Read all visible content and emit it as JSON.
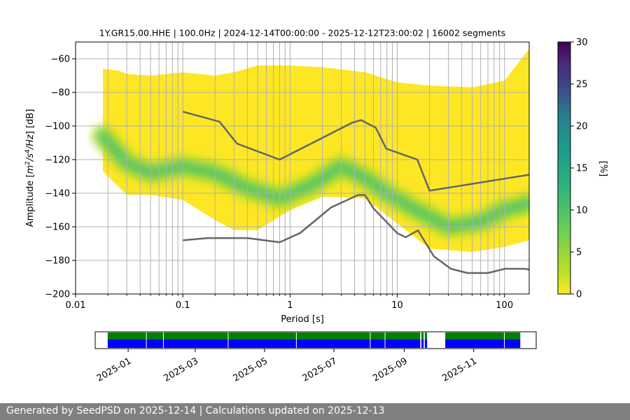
{
  "chart_data": [
    {
      "type": "heatmap",
      "title": "1Y.GR15.00.HHE | 100.0Hz | 2024-12-14T00:00:00 - 2025-12-12T23:00:02 | 16002 segments",
      "xlabel": "Period [s]",
      "ylabel": "Amplitude [m²/s⁴/Hz] [dB]",
      "ylabel_parts": {
        "pre": "Amplitude [",
        "m": "m",
        "exp1": "2",
        "s": "/s",
        "exp2": "4",
        "hz": "/Hz] [dB]"
      },
      "xscale": "log",
      "xlim": [
        0.01,
        170
      ],
      "ylim": [
        -200,
        -50
      ],
      "x_ticks": [
        {
          "v": 0.01,
          "label": "0.01"
        },
        {
          "v": 0.1,
          "label": "0.1"
        },
        {
          "v": 1,
          "label": "1"
        },
        {
          "v": 10,
          "label": "10"
        },
        {
          "v": 100,
          "label": "100"
        }
      ],
      "y_ticks": [
        {
          "v": -60,
          "label": "−60"
        },
        {
          "v": -80,
          "label": "−80"
        },
        {
          "v": -100,
          "label": "−100"
        },
        {
          "v": -120,
          "label": "−120"
        },
        {
          "v": -140,
          "label": "−140"
        },
        {
          "v": -160,
          "label": "−160"
        },
        {
          "v": -180,
          "label": "−180"
        },
        {
          "v": -200,
          "label": "−200"
        }
      ],
      "grid": true,
      "colormap": "viridis_r",
      "colorbar": {
        "label": "[%]",
        "range": [
          0,
          30
        ],
        "ticks": [
          {
            "v": 0,
            "label": "0"
          },
          {
            "v": 5,
            "label": "5"
          },
          {
            "v": 10,
            "label": "10"
          },
          {
            "v": 15,
            "label": "15"
          },
          {
            "v": 20,
            "label": "20"
          },
          {
            "v": 25,
            "label": "25"
          },
          {
            "v": 30,
            "label": "30"
          }
        ]
      },
      "ppsd_envelope": {
        "period": [
          0.018,
          0.025,
          0.03,
          0.05,
          0.1,
          0.2,
          0.3,
          0.5,
          1,
          2,
          5,
          10,
          20,
          50,
          100,
          170
        ],
        "upper": [
          -66,
          -67,
          -69,
          -70,
          -68,
          -70,
          -68,
          -64,
          -64,
          -65,
          -68,
          -74,
          -76,
          -77,
          -73,
          -54
        ],
        "lower": [
          -127,
          -136,
          -141,
          -141,
          -144,
          -156,
          -162,
          -162,
          -150,
          -142,
          -143,
          -158,
          -173,
          -175,
          -172,
          -168
        ]
      },
      "ppsd_mode": {
        "period": [
          0.018,
          0.03,
          0.05,
          0.1,
          0.2,
          0.4,
          0.8,
          1.5,
          3,
          5,
          8,
          15,
          30,
          60,
          100,
          170
        ],
        "values": [
          -106,
          -122,
          -128,
          -124,
          -128,
          -137,
          -143,
          -136,
          -124,
          -131,
          -140,
          -150,
          -160,
          -157,
          -150,
          -146
        ]
      },
      "noise_models": {
        "nhnm": {
          "period": [
            0.1,
            0.22,
            0.32,
            0.8,
            3.8,
            4.6,
            6.3,
            7.9,
            15.4,
            20,
            170
          ],
          "values": [
            -91.5,
            -97.4,
            -110.5,
            -120.0,
            -98.0,
            -96.5,
            -101.0,
            -113.5,
            -120.0,
            -138.5,
            -129
          ]
        },
        "nlnm": {
          "period": [
            0.1,
            0.17,
            0.4,
            0.8,
            1.24,
            2.4,
            4.3,
            5,
            6,
            10,
            12,
            15.6,
            21.9,
            31.6,
            45,
            70,
            101,
            154,
            170
          ],
          "values": [
            -168,
            -166.7,
            -166.7,
            -169.2,
            -163.7,
            -148.6,
            -141.1,
            -141.1,
            -149.0,
            -163.8,
            -166.2,
            -162.1,
            -177.5,
            -185,
            -187.5,
            -187.5,
            -185,
            -185,
            -185.5
          ]
        }
      }
    },
    {
      "type": "timeline",
      "x_ticks": [
        "2025-01",
        "2025-03",
        "2025-05",
        "2025-07",
        "2025-09",
        "2025-11"
      ],
      "range": [
        "2024-12-03",
        "2025-12-26"
      ],
      "data_color": "#008000",
      "used_color": "#0000ff",
      "data_available": [
        [
          "2024-12-14",
          "2025-09-15"
        ],
        [
          "2025-09-16",
          "2025-09-18"
        ],
        [
          "2025-09-19",
          "2025-09-21"
        ],
        [
          "2025-10-07",
          "2025-12-12"
        ]
      ],
      "used_segments": [
        [
          "2024-12-14",
          "2025-09-15"
        ],
        [
          "2025-09-16",
          "2025-09-18"
        ],
        [
          "2025-09-19",
          "2025-09-21"
        ],
        [
          "2025-10-07",
          "2025-12-12"
        ]
      ],
      "gaps": [
        "2025-01-17",
        "2025-02-01",
        "2025-03-30",
        "2025-05-29",
        "2025-08-02",
        "2025-08-15",
        "2025-11-28"
      ]
    }
  ],
  "footer": {
    "text": "Generated by SeedPSD on 2025-12-14 | Calculations updated on 2025-12-13"
  }
}
